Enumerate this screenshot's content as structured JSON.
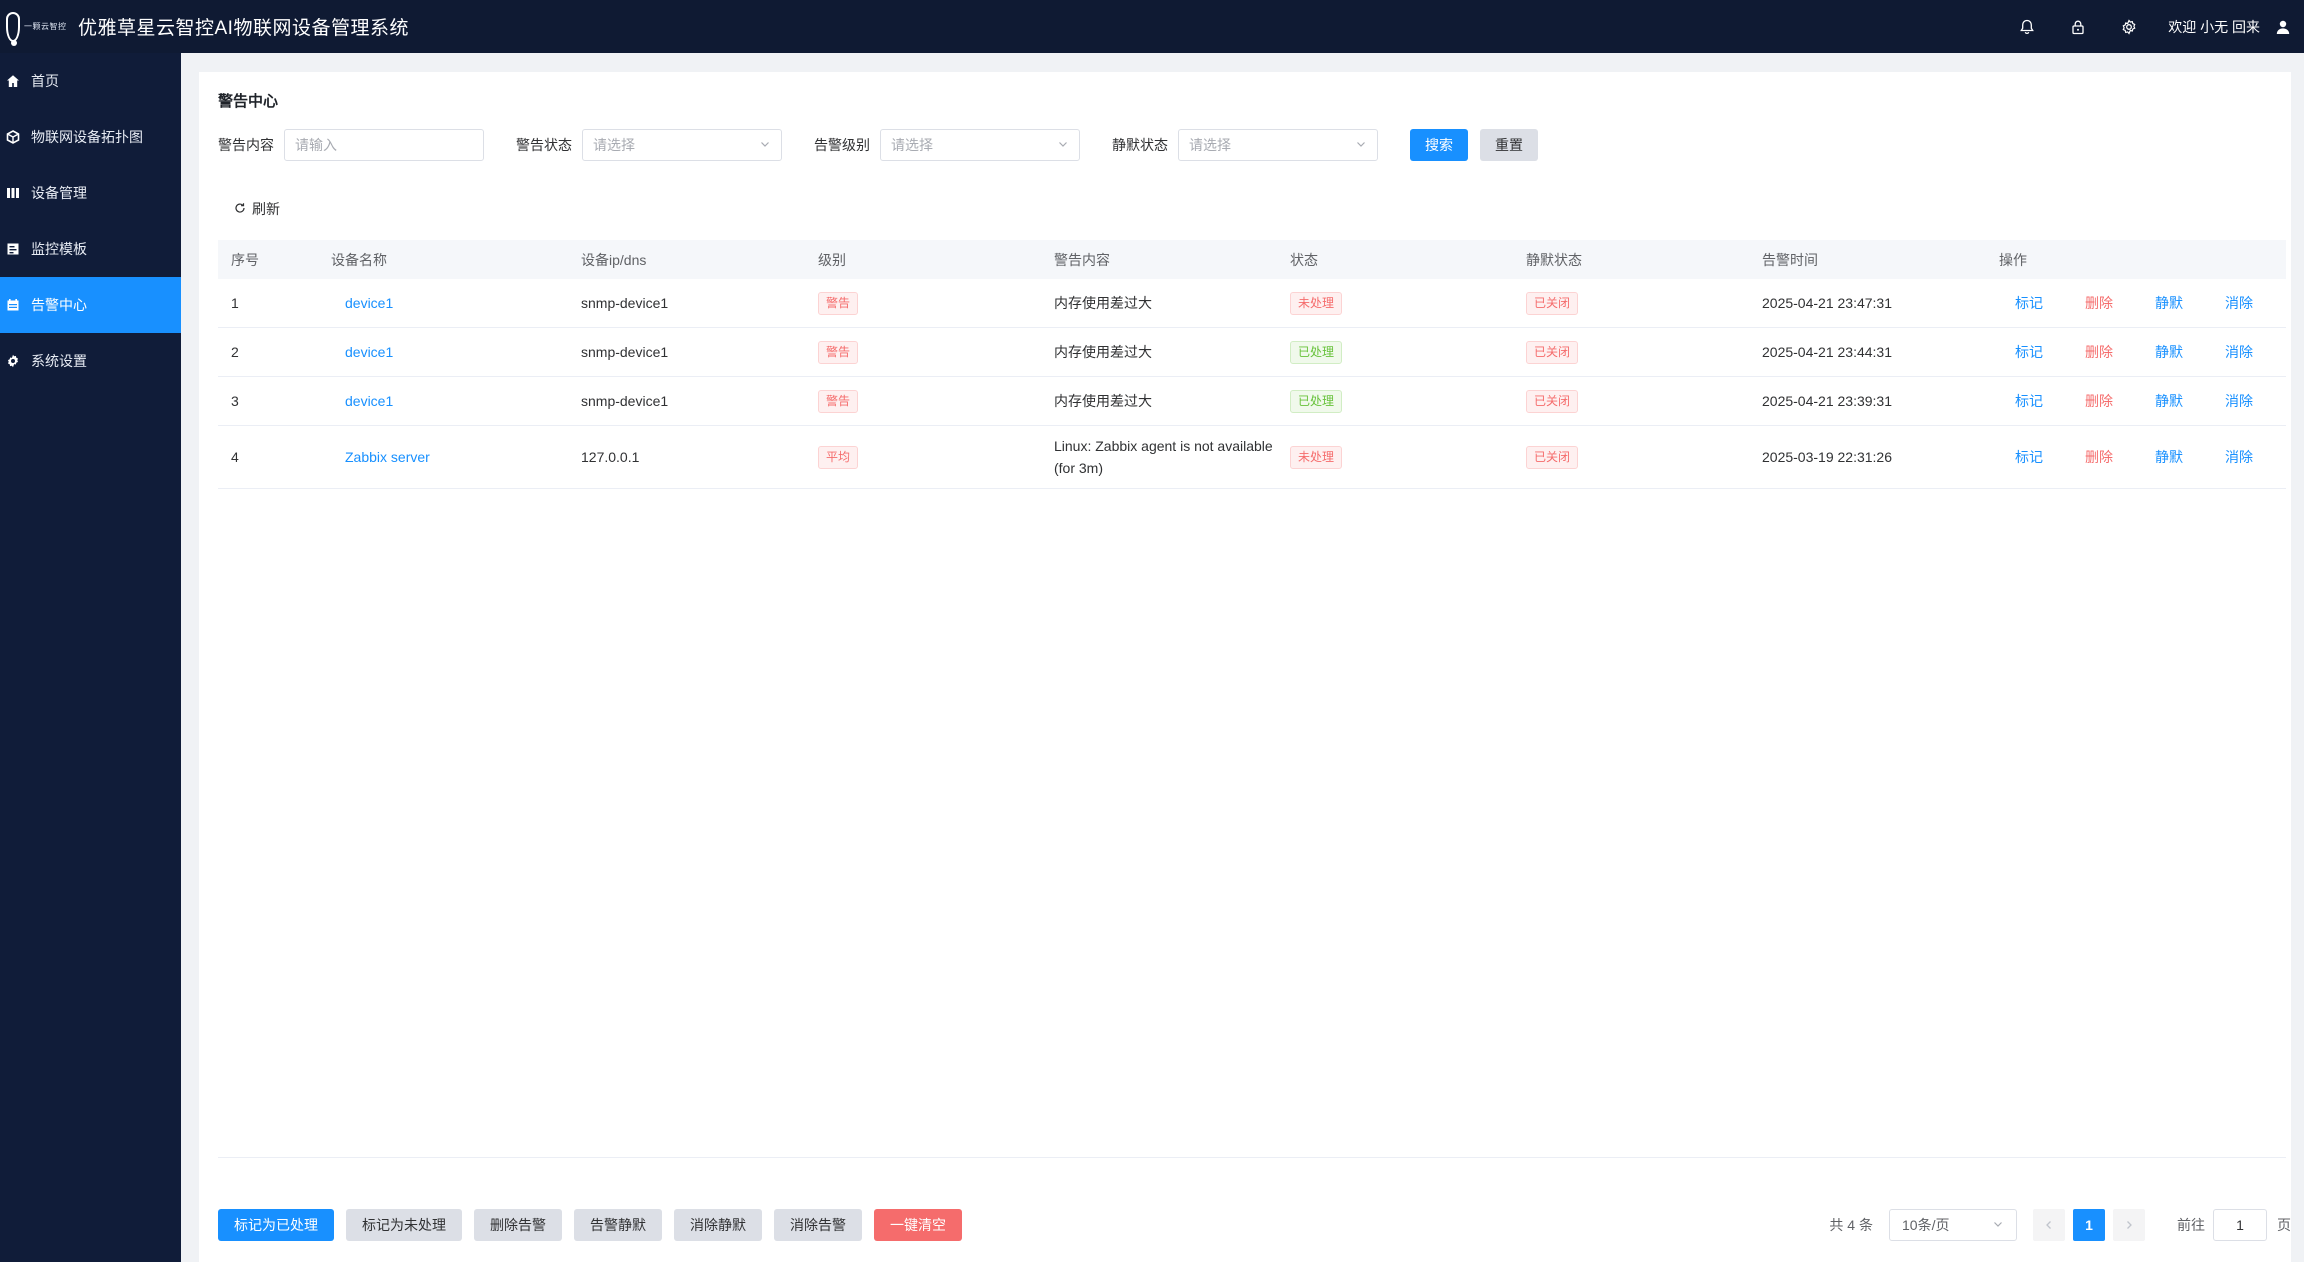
{
  "header": {
    "logo_text": "一颗云智控",
    "title": "优雅草星云智控AI物联网设备管理系统",
    "welcome": "欢迎 小无 回来"
  },
  "sidebar": {
    "items": [
      {
        "label": "首页",
        "icon": "home-icon"
      },
      {
        "label": "物联网设备拓扑图",
        "icon": "cube-icon"
      },
      {
        "label": "设备管理",
        "icon": "columns-icon"
      },
      {
        "label": "监控模板",
        "icon": "template-icon"
      },
      {
        "label": "告警中心",
        "icon": "calendar-icon",
        "active": true
      },
      {
        "label": "系统设置",
        "icon": "gear-icon"
      }
    ]
  },
  "page": {
    "title": "警告中心",
    "refresh": "刷新"
  },
  "filters": {
    "content_label": "警告内容",
    "content_placeholder": "请输入",
    "status_label": "警告状态",
    "status_placeholder": "请选择",
    "level_label": "告警级别",
    "level_placeholder": "请选择",
    "silence_label": "静默状态",
    "silence_placeholder": "请选择",
    "search": "搜索",
    "reset": "重置"
  },
  "table": {
    "headers": [
      "序号",
      "设备名称",
      "设备ip/dns",
      "级别",
      "警告内容",
      "状态",
      "静默状态",
      "告警时间",
      "操作"
    ],
    "rows": [
      {
        "no": "1",
        "device": "device1",
        "ip": "snmp-device1",
        "level": "警告",
        "content": "内存使用差过大",
        "status": "未处理",
        "status_color": "red",
        "silence": "已关闭",
        "time": "2025-04-21 23:47:31"
      },
      {
        "no": "2",
        "device": "device1",
        "ip": "snmp-device1",
        "level": "警告",
        "content": "内存使用差过大",
        "status": "已处理",
        "status_color": "green",
        "silence": "已关闭",
        "time": "2025-04-21 23:44:31"
      },
      {
        "no": "3",
        "device": "device1",
        "ip": "snmp-device1",
        "level": "警告",
        "content": "内存使用差过大",
        "status": "已处理",
        "status_color": "green",
        "silence": "已关闭",
        "time": "2025-04-21 23:39:31"
      },
      {
        "no": "4",
        "device": "Zabbix server",
        "ip": "127.0.0.1",
        "level": "平均",
        "content": "Linux: Zabbix agent is not available (for 3m)",
        "status": "未处理",
        "status_color": "red",
        "silence": "已关闭",
        "time": "2025-03-19 22:31:26"
      }
    ],
    "ops": {
      "mark": "标记",
      "delete": "删除",
      "silence": "静默",
      "clear": "消除"
    }
  },
  "actions": {
    "mark_done": "标记为已处理",
    "mark_undone": "标记为未处理",
    "delete_alert": "删除告警",
    "silence_alert": "告警静默",
    "unsilence": "消除静默",
    "clear_alert": "消除告警",
    "clear_all": "一键清空"
  },
  "pagination": {
    "total": "共 4 条",
    "page_size": "10条/页",
    "current_page": "1",
    "goto_label": "前往",
    "goto_value": "1",
    "page_unit": "页"
  },
  "colors": {
    "accent": "#1890ff",
    "danger": "#f56c6c",
    "success": "#67c23a",
    "header_bg": "#0f1a33",
    "sidebar_bg": "#101c39"
  }
}
